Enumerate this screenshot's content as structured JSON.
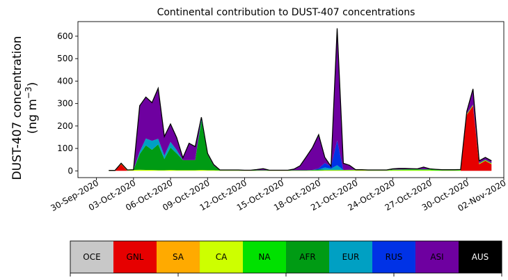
{
  "chart_data": {
    "type": "area",
    "stacked": true,
    "title": "Continental contribution to DUST-407 concentrations",
    "ylabel_line1": "DUST-407 concentration",
    "ylabel_line2": "(ng m",
    "ylabel_sup": "−3",
    "ylabel_end": ")",
    "ylim": [
      -30,
      665
    ],
    "yticks": [
      0,
      100,
      200,
      300,
      400,
      500,
      600
    ],
    "xlim": [
      -1.5,
      33
    ],
    "xticks": [
      {
        "pos": 0,
        "label": "30-Sep-2020"
      },
      {
        "pos": 3,
        "label": "03-Oct-2020"
      },
      {
        "pos": 6,
        "label": "06-Oct-2020"
      },
      {
        "pos": 9,
        "label": "09-Oct-2020"
      },
      {
        "pos": 12,
        "label": "12-Oct-2020"
      },
      {
        "pos": 15,
        "label": "15-Oct-2020"
      },
      {
        "pos": 18,
        "label": "18-Oct-2020"
      },
      {
        "pos": 21,
        "label": "21-Oct-2020"
      },
      {
        "pos": 24,
        "label": "24-Oct-2020"
      },
      {
        "pos": 27,
        "label": "27-Oct-2020"
      },
      {
        "pos": 30,
        "label": "30-Oct-2020"
      },
      {
        "pos": 33,
        "label": "02-Nov-2020"
      }
    ],
    "x": [
      1,
      1.5,
      2,
      2.5,
      3,
      3.5,
      4,
      4.5,
      5,
      5.5,
      6,
      6.5,
      7,
      7.5,
      8,
      8.5,
      9,
      9.5,
      10,
      10.5,
      11,
      11.5,
      12,
      12.5,
      13,
      13.5,
      14,
      14.5,
      15,
      15.5,
      16,
      16.5,
      17,
      17.5,
      18,
      18.5,
      19,
      19.5,
      20,
      20.5,
      21,
      21.5,
      22,
      22.5,
      23,
      23.5,
      24,
      24.5,
      25,
      25.5,
      26,
      26.5,
      27,
      27.5,
      28,
      28.5,
      29,
      29.5,
      30,
      30.5,
      31,
      31.5,
      32
    ],
    "series": [
      {
        "name": "GNL",
        "values": [
          0,
          0,
          30,
          0,
          0,
          0,
          0,
          0,
          0,
          0,
          0,
          0,
          0,
          0,
          0,
          0,
          0,
          0,
          0,
          0,
          0,
          0,
          0,
          0,
          0,
          0,
          0,
          0,
          0,
          0,
          0,
          0,
          0,
          0,
          0,
          0,
          0,
          0,
          0,
          0,
          0,
          0,
          0,
          0,
          0,
          0,
          0,
          0,
          0,
          0,
          0,
          0,
          0,
          0,
          0,
          0,
          0,
          0,
          250,
          290,
          30,
          45,
          30
        ]
      },
      {
        "name": "CA",
        "values": [
          2,
          2,
          2,
          2,
          4,
          5,
          4,
          4,
          3,
          3,
          4,
          3,
          3,
          3,
          3,
          4,
          3,
          3,
          2,
          2,
          2,
          2,
          1,
          1,
          1,
          1,
          1,
          1,
          1,
          1,
          1,
          1,
          1,
          2,
          2,
          3,
          3,
          3,
          3,
          3,
          3,
          3,
          2,
          2,
          2,
          2,
          3,
          3,
          3,
          3,
          3,
          3,
          3,
          2,
          2,
          2,
          2,
          2,
          2,
          2,
          2,
          2,
          2
        ]
      },
      {
        "name": "NA",
        "values": [
          0,
          0,
          0,
          0,
          0,
          0,
          0,
          0,
          0,
          0,
          0,
          0,
          0,
          0,
          0,
          0,
          0,
          0,
          0,
          0,
          0,
          0,
          0,
          0,
          0,
          0,
          0,
          0,
          0,
          0,
          0,
          0,
          0,
          0,
          0,
          0,
          0,
          0,
          0,
          0,
          0,
          0,
          0,
          0,
          0,
          0,
          2,
          2,
          3,
          3,
          3,
          3,
          3,
          3,
          2,
          2,
          2,
          2,
          2,
          2,
          2,
          2,
          2
        ]
      },
      {
        "name": "AFR",
        "values": [
          0,
          0,
          0,
          0,
          0,
          70,
          110,
          90,
          115,
          50,
          100,
          75,
          45,
          45,
          45,
          220,
          70,
          20,
          2,
          2,
          2,
          2,
          2,
          2,
          2,
          2,
          2,
          2,
          2,
          2,
          2,
          2,
          2,
          2,
          4,
          2,
          2,
          2,
          1,
          2,
          2,
          2,
          2,
          2,
          2,
          2,
          1,
          1,
          1,
          1,
          1,
          1,
          1,
          1,
          1,
          1,
          1,
          1,
          1,
          1,
          1,
          1,
          1
        ]
      },
      {
        "name": "EUR",
        "values": [
          0,
          0,
          0,
          0,
          0,
          10,
          30,
          40,
          25,
          15,
          25,
          15,
          0,
          0,
          0,
          10,
          0,
          0,
          0,
          0,
          0,
          0,
          0,
          0,
          0,
          0,
          0,
          0,
          0,
          0,
          0,
          0,
          0,
          0,
          0,
          10,
          5,
          20,
          0,
          0,
          0,
          0,
          0,
          0,
          0,
          0,
          0,
          0,
          0,
          0,
          0,
          0,
          0,
          0,
          0,
          0,
          0,
          0,
          0,
          0,
          0,
          0,
          0
        ]
      },
      {
        "name": "RUS",
        "values": [
          0,
          0,
          0,
          0,
          0,
          0,
          0,
          0,
          0,
          0,
          0,
          0,
          0,
          0,
          0,
          0,
          0,
          0,
          0,
          0,
          0,
          0,
          0,
          0,
          0,
          0,
          0,
          0,
          0,
          0,
          0,
          0,
          0,
          0,
          5,
          20,
          10,
          110,
          0,
          0,
          0,
          0,
          0,
          0,
          0,
          0,
          0,
          0,
          0,
          0,
          0,
          0,
          0,
          0,
          0,
          0,
          0,
          0,
          0,
          0,
          0,
          0,
          0
        ]
      },
      {
        "name": "ASI",
        "values": [
          0,
          0,
          2,
          2,
          1,
          205,
          185,
          170,
          225,
          85,
          80,
          55,
          10,
          75,
          60,
          5,
          5,
          5,
          0,
          0,
          0,
          0,
          0,
          0,
          3,
          7,
          0,
          0,
          0,
          0,
          5,
          20,
          60,
          100,
          150,
          25,
          0,
          500,
          30,
          20,
          0,
          0,
          0,
          0,
          0,
          0,
          3,
          5,
          4,
          3,
          2,
          10,
          2,
          1,
          0,
          0,
          0,
          1,
          10,
          70,
          10,
          10,
          10
        ]
      },
      {
        "name": "AUS",
        "values": [
          0,
          0,
          0,
          0,
          0,
          0,
          0,
          0,
          0,
          0,
          0,
          0,
          0,
          0,
          0,
          0,
          0,
          0,
          0,
          0,
          0,
          0,
          0,
          0,
          0,
          0,
          0,
          0,
          0,
          0,
          0,
          0,
          0,
          0,
          0,
          0,
          0,
          0,
          0,
          0,
          0,
          0,
          0,
          0,
          0,
          0,
          0,
          0,
          0,
          0,
          0,
          0,
          0,
          0,
          0,
          0,
          0,
          0,
          0,
          0,
          0,
          0,
          0
        ]
      }
    ],
    "legend": [
      {
        "name": "OCE",
        "color": "#c8c8c8",
        "text_color": "#000000"
      },
      {
        "name": "GNL",
        "color": "#e60000",
        "text_color": "#000000"
      },
      {
        "name": "SA",
        "color": "#ffaa00",
        "text_color": "#000000"
      },
      {
        "name": "CA",
        "color": "#cdff00",
        "text_color": "#000000"
      },
      {
        "name": "NA",
        "color": "#00e100",
        "text_color": "#000000"
      },
      {
        "name": "AFR",
        "color": "#009b14",
        "text_color": "#000000"
      },
      {
        "name": "EUR",
        "color": "#00a0c3",
        "text_color": "#000000"
      },
      {
        "name": "RUS",
        "color": "#0032e6",
        "text_color": "#000000"
      },
      {
        "name": "ASI",
        "color": "#6e00a0",
        "text_color": "#000000"
      },
      {
        "name": "AUS",
        "color": "#000000",
        "text_color": "#ffffff"
      }
    ],
    "colors": {
      "OCE": "#c8c8c8",
      "GNL": "#e60000",
      "SA": "#ffaa00",
      "CA": "#cdff00",
      "NA": "#00e100",
      "AFR": "#009b14",
      "EUR": "#00a0c3",
      "RUS": "#0032e6",
      "ASI": "#6e00a0",
      "AUS": "#000000"
    }
  }
}
